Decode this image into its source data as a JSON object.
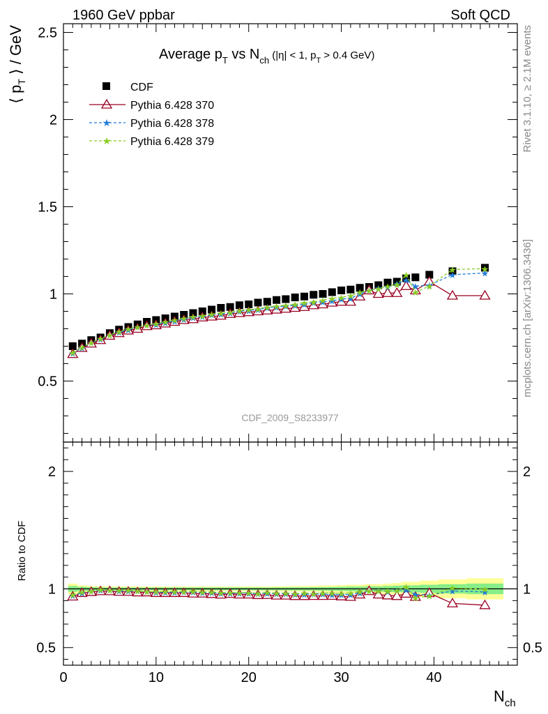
{
  "header": {
    "left": "1960 GeV ppbar",
    "right": "Soft QCD"
  },
  "side_labels": {
    "rivet": "Rivet 3.1.10, ≥ 2.1M events",
    "mcplots": "mcplots.cern.ch [arXiv:1306.3436]"
  },
  "colors": {
    "cdf": "#000000",
    "p370": "#990022",
    "p378": "#1f7bd6",
    "p379": "#88cc22",
    "band_yellow": "#ffff99",
    "band_green": "#88ee88"
  },
  "chart_data": [
    {
      "panel": "main",
      "type": "scatter",
      "title": "Average p_T vs N_ch (|η| < 1, p_T > 0.4 GeV)",
      "title_parts": {
        "t1": "Average p",
        "sub1": "T",
        "t2": " vs N",
        "sub2": "ch",
        "t3": " (|η| < 1, p",
        "sub3": "T",
        "t4": " > 0.4 GeV)"
      },
      "ylabel": "⟨ p_T ⟩ / GeV",
      "ylabel_parts": {
        "a": "⟨ p",
        "sub": "T",
        "b": " ⟩ / GeV"
      },
      "analysis_id": "CDF_2009_S8233977",
      "xlim": [
        0,
        49
      ],
      "ylim": [
        0.15,
        2.55
      ],
      "ytick_labels": [
        "0.5",
        "1",
        "1.5",
        "2",
        "2.5"
      ],
      "legend": [
        "CDF",
        "Pythia 6.428 370",
        "Pythia 6.428 378",
        "Pythia 6.428 379"
      ],
      "legend_position": "top-left",
      "series": [
        {
          "name": "CDF",
          "marker": "filled-square",
          "x": [
            1,
            2,
            3,
            4,
            5,
            6,
            7,
            8,
            9,
            10,
            11,
            12,
            13,
            14,
            15,
            16,
            17,
            18,
            19,
            20,
            21,
            22,
            23,
            24,
            25,
            26,
            27,
            28,
            29,
            30,
            31,
            32,
            33,
            34,
            35,
            36,
            37,
            38,
            39.5,
            42,
            45.5
          ],
          "y": [
            0.7,
            0.715,
            0.735,
            0.75,
            0.775,
            0.795,
            0.81,
            0.825,
            0.84,
            0.85,
            0.86,
            0.87,
            0.88,
            0.89,
            0.9,
            0.91,
            0.92,
            0.925,
            0.935,
            0.94,
            0.95,
            0.955,
            0.965,
            0.97,
            0.98,
            0.985,
            0.995,
            1.0,
            1.01,
            1.02,
            1.025,
            1.035,
            1.04,
            1.05,
            1.065,
            1.07,
            1.09,
            1.095,
            1.11,
            1.13,
            1.15
          ]
        },
        {
          "name": "Pythia 6.428 370",
          "marker": "open-triangle",
          "x": [
            1,
            2,
            3,
            4,
            5,
            6,
            7,
            8,
            9,
            10,
            11,
            12,
            13,
            14,
            15,
            16,
            17,
            18,
            19,
            20,
            21,
            22,
            23,
            24,
            25,
            26,
            27,
            28,
            29,
            30,
            31,
            32,
            33,
            34,
            35,
            36,
            37,
            38,
            39.5,
            42,
            45.5
          ],
          "y": [
            0.655,
            0.69,
            0.715,
            0.735,
            0.76,
            0.775,
            0.79,
            0.8,
            0.815,
            0.82,
            0.83,
            0.84,
            0.85,
            0.855,
            0.865,
            0.87,
            0.875,
            0.885,
            0.89,
            0.895,
            0.9,
            0.905,
            0.91,
            0.915,
            0.92,
            0.925,
            0.935,
            0.94,
            0.95,
            0.955,
            0.955,
            0.985,
            1.02,
            1.0,
            1.005,
            1.005,
            1.045,
            1.02,
            1.07,
            0.99,
            0.99
          ]
        },
        {
          "name": "Pythia 6.428 378",
          "marker": "star",
          "x": [
            1,
            2,
            3,
            4,
            5,
            6,
            7,
            8,
            9,
            10,
            11,
            12,
            13,
            14,
            15,
            16,
            17,
            18,
            19,
            20,
            21,
            22,
            23,
            24,
            25,
            26,
            27,
            28,
            29,
            30,
            31,
            32,
            33,
            34,
            35,
            36,
            37,
            38,
            39.5,
            42,
            45.5
          ],
          "y": [
            0.66,
            0.69,
            0.72,
            0.74,
            0.765,
            0.78,
            0.795,
            0.81,
            0.82,
            0.825,
            0.835,
            0.845,
            0.855,
            0.865,
            0.87,
            0.88,
            0.885,
            0.89,
            0.9,
            0.905,
            0.91,
            0.92,
            0.925,
            0.93,
            0.935,
            0.94,
            0.95,
            0.955,
            0.96,
            0.97,
            0.975,
            1.0,
            1.02,
            1.035,
            1.04,
            1.06,
            1.08,
            1.045,
            1.05,
            1.11,
            1.12
          ]
        },
        {
          "name": "Pythia 6.428 379",
          "marker": "star",
          "x": [
            1,
            2,
            3,
            4,
            5,
            6,
            7,
            8,
            9,
            10,
            11,
            12,
            13,
            14,
            15,
            16,
            17,
            18,
            19,
            20,
            21,
            22,
            23,
            24,
            25,
            26,
            27,
            28,
            29,
            30,
            31,
            32,
            33,
            34,
            35,
            36,
            37,
            38,
            39.5,
            42,
            45.5
          ],
          "y": [
            0.665,
            0.695,
            0.72,
            0.745,
            0.765,
            0.785,
            0.8,
            0.81,
            0.82,
            0.83,
            0.84,
            0.85,
            0.86,
            0.87,
            0.875,
            0.885,
            0.89,
            0.895,
            0.905,
            0.91,
            0.915,
            0.925,
            0.93,
            0.935,
            0.94,
            0.95,
            0.955,
            0.965,
            0.975,
            0.98,
            0.99,
            1.01,
            1.02,
            1.03,
            1.045,
            1.055,
            1.11,
            1.01,
            1.045,
            1.14,
            1.145
          ]
        }
      ]
    },
    {
      "panel": "ratio",
      "type": "scatter",
      "ylabel": "Ratio to CDF",
      "xlabel": "N_ch",
      "xlabel_parts": {
        "main": "N",
        "sub": "ch"
      },
      "xlim": [
        0,
        49
      ],
      "ylim": [
        0.35,
        2.25
      ],
      "xtick_labels": [
        "0",
        "10",
        "20",
        "30",
        "40"
      ],
      "ytick_labels": [
        "0.5",
        "1",
        "2"
      ],
      "bands": {
        "x": [
          0.5,
          1.5,
          2.5,
          3.5,
          4.5,
          5.5,
          6.5,
          7.5,
          8.5,
          9.5,
          10.5,
          11.5,
          12.5,
          13.5,
          14.5,
          15.5,
          16.5,
          17.5,
          18.5,
          19.5,
          20.5,
          21.5,
          22.5,
          23.5,
          24.5,
          25.5,
          26.5,
          27.5,
          28.5,
          29.5,
          30.5,
          31.5,
          32.5,
          33.5,
          34.5,
          35.5,
          36.5,
          37.5,
          38.5,
          40.5,
          43.5,
          47.5
        ],
        "yellow_half": [
          0.045,
          0.03,
          0.025,
          0.022,
          0.02,
          0.02,
          0.02,
          0.02,
          0.02,
          0.02,
          0.02,
          0.02,
          0.02,
          0.02,
          0.02,
          0.02,
          0.02,
          0.02,
          0.02,
          0.02,
          0.02,
          0.02,
          0.022,
          0.022,
          0.024,
          0.024,
          0.026,
          0.028,
          0.03,
          0.032,
          0.035,
          0.035,
          0.04,
          0.04,
          0.045,
          0.05,
          0.06,
          0.06,
          0.07,
          0.08,
          0.09
        ],
        "green_half": [
          0.025,
          0.018,
          0.015,
          0.013,
          0.012,
          0.012,
          0.012,
          0.012,
          0.012,
          0.012,
          0.012,
          0.012,
          0.012,
          0.012,
          0.012,
          0.012,
          0.012,
          0.012,
          0.012,
          0.012,
          0.012,
          0.012,
          0.013,
          0.013,
          0.014,
          0.014,
          0.015,
          0.016,
          0.017,
          0.018,
          0.02,
          0.02,
          0.022,
          0.022,
          0.025,
          0.027,
          0.03,
          0.03,
          0.035,
          0.04,
          0.045
        ]
      },
      "series": [
        {
          "name": "Pythia 6.428 370",
          "x": [
            1,
            2,
            3,
            4,
            5,
            6,
            7,
            8,
            9,
            10,
            11,
            12,
            13,
            14,
            15,
            16,
            17,
            18,
            19,
            20,
            21,
            22,
            23,
            24,
            25,
            26,
            27,
            28,
            29,
            30,
            31,
            32,
            33,
            34,
            35,
            36,
            37,
            38,
            39.5,
            42,
            45.5
          ],
          "y": [
            0.935,
            0.965,
            0.973,
            0.98,
            0.98,
            0.975,
            0.975,
            0.97,
            0.97,
            0.965,
            0.965,
            0.965,
            0.965,
            0.96,
            0.96,
            0.956,
            0.951,
            0.957,
            0.952,
            0.952,
            0.947,
            0.948,
            0.943,
            0.943,
            0.939,
            0.939,
            0.94,
            0.94,
            0.941,
            0.936,
            0.932,
            0.952,
            0.981,
            0.952,
            0.944,
            0.939,
            0.959,
            0.932,
            0.964,
            0.876,
            0.861
          ]
        },
        {
          "name": "Pythia 6.428 378",
          "x": [
            1,
            2,
            3,
            4,
            5,
            6,
            7,
            8,
            9,
            10,
            11,
            12,
            13,
            14,
            15,
            16,
            17,
            18,
            19,
            20,
            21,
            22,
            23,
            24,
            25,
            26,
            27,
            28,
            29,
            30,
            31,
            32,
            33,
            34,
            35,
            36,
            37,
            38,
            39.5,
            42,
            45.5
          ],
          "y": [
            0.943,
            0.965,
            0.98,
            0.987,
            0.987,
            0.981,
            0.981,
            0.982,
            0.976,
            0.971,
            0.971,
            0.971,
            0.972,
            0.972,
            0.967,
            0.967,
            0.962,
            0.962,
            0.963,
            0.963,
            0.958,
            0.963,
            0.959,
            0.959,
            0.954,
            0.954,
            0.955,
            0.955,
            0.95,
            0.951,
            0.951,
            0.966,
            0.981,
            0.986,
            0.977,
            0.991,
            0.991,
            0.954,
            0.946,
            0.982,
            0.974
          ]
        },
        {
          "name": "Pythia 6.428 379",
          "x": [
            1,
            2,
            3,
            4,
            5,
            6,
            7,
            8,
            9,
            10,
            11,
            12,
            13,
            14,
            15,
            16,
            17,
            18,
            19,
            20,
            21,
            22,
            23,
            24,
            25,
            26,
            27,
            28,
            29,
            30,
            31,
            32,
            33,
            34,
            35,
            36,
            37,
            38,
            39.5,
            42,
            45.5
          ],
          "y": [
            0.95,
            0.972,
            0.98,
            0.993,
            0.987,
            0.987,
            0.988,
            0.982,
            0.976,
            0.976,
            0.977,
            0.977,
            0.977,
            0.978,
            0.972,
            0.973,
            0.967,
            0.968,
            0.968,
            0.968,
            0.963,
            0.969,
            0.964,
            0.964,
            0.959,
            0.964,
            0.96,
            0.965,
            0.965,
            0.961,
            0.966,
            0.976,
            0.981,
            0.981,
            0.981,
            0.986,
            1.018,
            0.922,
            0.941,
            1.009,
            0.996
          ]
        }
      ]
    }
  ]
}
